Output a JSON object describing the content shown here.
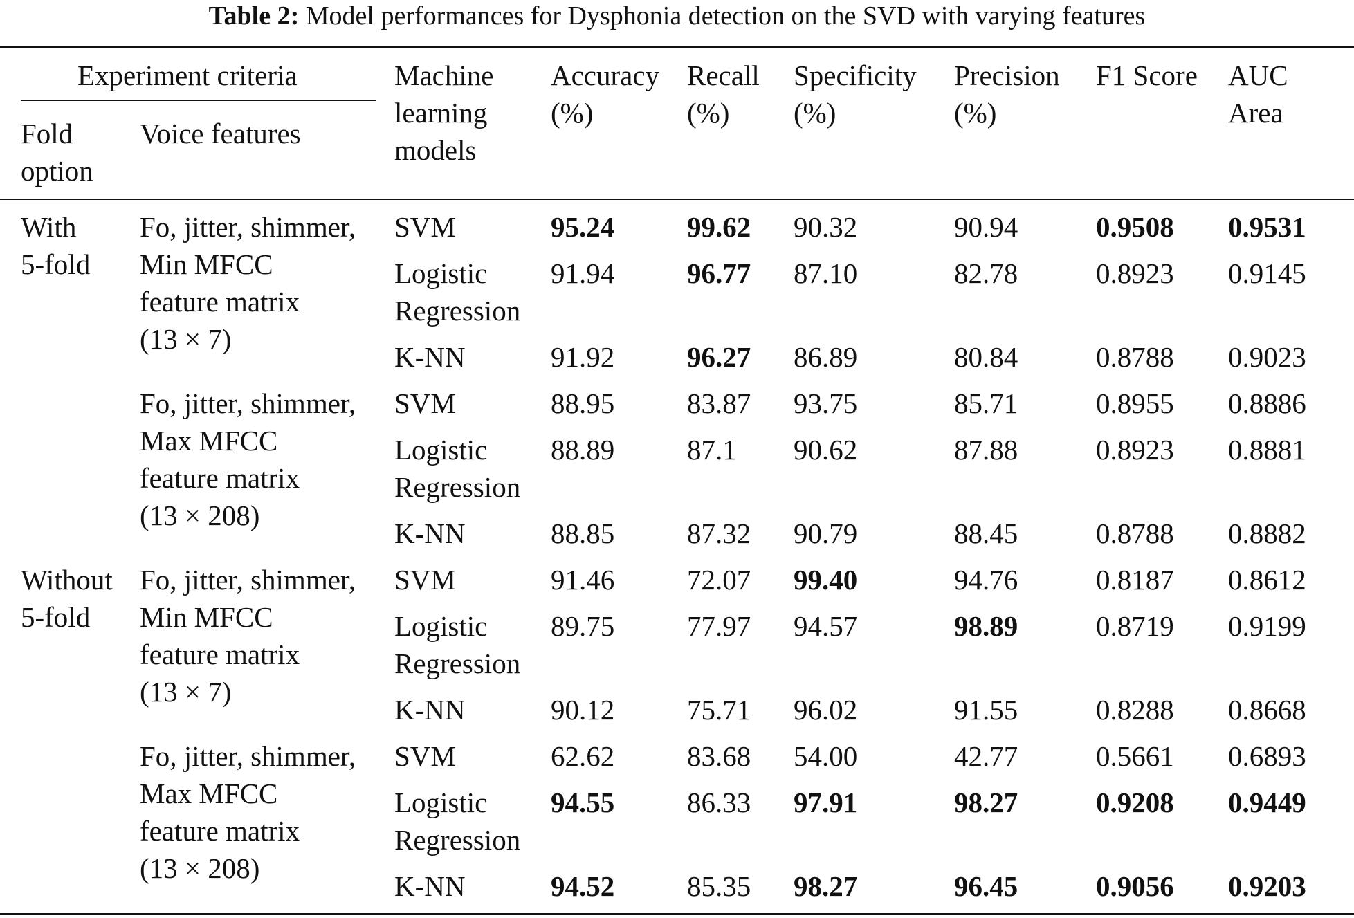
{
  "caption": {
    "label": "Table 2:",
    "text": "Model performances for Dysphonia detection on the SVD with varying features"
  },
  "header": {
    "group": "Experiment criteria",
    "fold": "Fold\noption",
    "voice": "Voice features",
    "model": "Machine\nlearning\nmodels",
    "accuracy": "Accuracy\n(%)",
    "recall": "Recall\n(%)",
    "specificity": "Specificity\n(%)",
    "precision": "Precision\n(%)",
    "f1": "F1 Score",
    "auc": "AUC\nArea"
  },
  "fold_labels": [
    "With\n5-fold",
    "Without\n5-fold"
  ],
  "feature_labels": [
    "Fo, jitter, shimmer,\nMin MFCC\nfeature matrix\n(13 × 7)",
    "Fo, jitter, shimmer,\nMax MFCC\nfeature matrix\n(13 × 208)",
    "Fo, jitter, shimmer,\nMin MFCC\nfeature matrix\n(13 × 7)",
    "Fo, jitter, shimmer,\nMax MFCC\nfeature matrix\n(13 × 208)"
  ],
  "models": [
    "SVM",
    "Logistic\nRegression",
    "K-NN",
    "SVM",
    "Logistic\nRegression",
    "K-NN",
    "SVM",
    "Logistic\nRegression",
    "K-NN",
    "SVM",
    "Logistic\nRegression",
    "K-NN"
  ],
  "rows": [
    {
      "acc": "95.24",
      "rec": "99.62",
      "spec": "90.32",
      "prec": "90.94",
      "f1": "0.9508",
      "auc": "0.9531"
    },
    {
      "acc": "91.94",
      "rec": "96.77",
      "spec": "87.10",
      "prec": "82.78",
      "f1": "0.8923",
      "auc": "0.9145"
    },
    {
      "acc": "91.92",
      "rec": "96.27",
      "spec": "86.89",
      "prec": "80.84",
      "f1": "0.8788",
      "auc": "0.9023"
    },
    {
      "acc": "88.95",
      "rec": "83.87",
      "spec": "93.75",
      "prec": "85.71",
      "f1": "0.8955",
      "auc": "0.8886"
    },
    {
      "acc": "88.89",
      "rec": "87.1",
      "spec": "90.62",
      "prec": "87.88",
      "f1": "0.8923",
      "auc": "0.8881"
    },
    {
      "acc": "88.85",
      "rec": "87.32",
      "spec": "90.79",
      "prec": "88.45",
      "f1": "0.8788",
      "auc": "0.8882"
    },
    {
      "acc": "91.46",
      "rec": "72.07",
      "spec": "99.40",
      "prec": "94.76",
      "f1": "0.8187",
      "auc": "0.8612"
    },
    {
      "acc": "89.75",
      "rec": "77.97",
      "spec": "94.57",
      "prec": "98.89",
      "f1": "0.8719",
      "auc": "0.9199"
    },
    {
      "acc": "90.12",
      "rec": "75.71",
      "spec": "96.02",
      "prec": "91.55",
      "f1": "0.8288",
      "auc": "0.8668"
    },
    {
      "acc": "62.62",
      "rec": "83.68",
      "spec": "54.00",
      "prec": "42.77",
      "f1": "0.5661",
      "auc": "0.6893"
    },
    {
      "acc": "94.55",
      "rec": "86.33",
      "spec": "97.91",
      "prec": "98.27",
      "f1": "0.9208",
      "auc": "0.9449"
    },
    {
      "acc": "94.52",
      "rec": "85.35",
      "spec": "98.27",
      "prec": "96.45",
      "f1": "0.9056",
      "auc": "0.9203"
    }
  ],
  "bold_cells": [
    [
      "acc",
      "rec",
      "f1",
      "auc"
    ],
    [
      "rec"
    ],
    [
      "rec"
    ],
    [],
    [],
    [],
    [
      "spec"
    ],
    [
      "prec"
    ],
    [],
    [],
    [
      "acc",
      "spec",
      "prec",
      "f1",
      "auc"
    ],
    [
      "acc",
      "spec",
      "prec",
      "f1",
      "auc"
    ]
  ]
}
